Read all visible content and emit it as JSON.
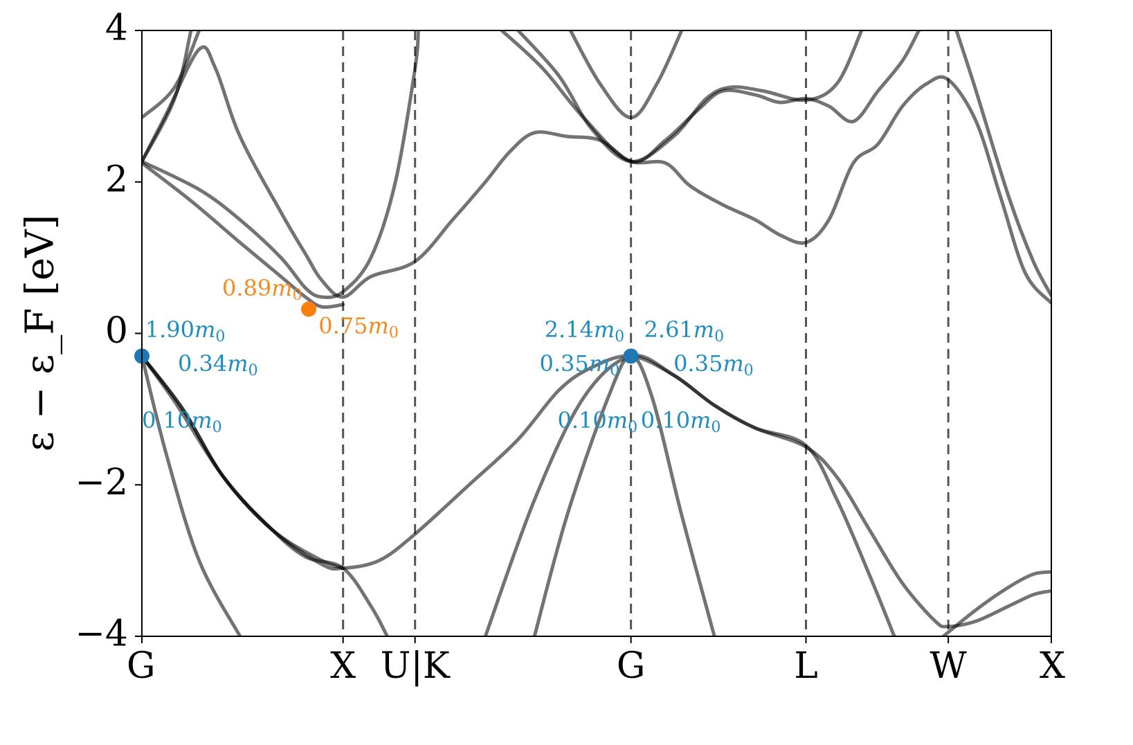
{
  "chart_data": {
    "type": "line",
    "title": "",
    "xlabel": "",
    "ylabel": "ε − ε_F [eV]",
    "ylim": [
      -4,
      4
    ],
    "grid": false,
    "xlim": [
      0,
      5.56
    ],
    "yticks": [
      {
        "value": 4,
        "label": "4"
      },
      {
        "value": 2,
        "label": "2"
      },
      {
        "value": 0,
        "label": "0"
      },
      {
        "value": -2,
        "label": "−2"
      },
      {
        "value": -4,
        "label": "−4"
      }
    ],
    "high_symmetry_points": [
      {
        "x": 0.0,
        "label": "G",
        "line": false
      },
      {
        "x": 1.23,
        "label": "X",
        "line": true
      },
      {
        "x": 1.67,
        "label": "U|K",
        "line": true
      },
      {
        "x": 2.99,
        "label": "G",
        "line": true
      },
      {
        "x": 4.06,
        "label": "L",
        "line": true
      },
      {
        "x": 4.93,
        "label": "W",
        "line": true
      },
      {
        "x": 5.56,
        "label": "X",
        "line": false
      }
    ],
    "series": [
      {
        "values": [
          [
            0.0,
            -0.3
          ],
          [
            0.2,
            -0.9
          ],
          [
            0.5,
            -1.9
          ],
          [
            0.8,
            -2.6
          ],
          [
            1.0,
            -2.95
          ],
          [
            1.23,
            -3.1
          ],
          [
            1.4,
            -3.6
          ],
          [
            1.5,
            -4.0
          ]
        ]
      },
      {
        "values": [
          [
            0.0,
            -0.3
          ],
          [
            0.15,
            -1.6
          ],
          [
            0.35,
            -3.0
          ],
          [
            0.6,
            -4.0
          ]
        ]
      },
      {
        "values": [
          [
            0.0,
            -0.3
          ],
          [
            0.25,
            -1.0
          ],
          [
            0.5,
            -1.9
          ],
          [
            0.8,
            -2.6
          ],
          [
            1.1,
            -3.05
          ],
          [
            1.23,
            -3.1
          ],
          [
            1.45,
            -3.0
          ],
          [
            1.67,
            -2.65
          ],
          [
            2.0,
            -2.0
          ],
          [
            2.3,
            -1.4
          ],
          [
            2.55,
            -0.75
          ],
          [
            2.75,
            -0.45
          ],
          [
            2.99,
            -0.3
          ],
          [
            3.25,
            -0.55
          ],
          [
            3.5,
            -0.95
          ],
          [
            3.75,
            -1.25
          ],
          [
            4.06,
            -1.5
          ],
          [
            4.25,
            -1.9
          ],
          [
            4.45,
            -2.6
          ],
          [
            4.65,
            -3.3
          ],
          [
            4.85,
            -3.8
          ],
          [
            4.93,
            -3.87
          ],
          [
            5.1,
            -3.8
          ],
          [
            5.3,
            -3.6
          ],
          [
            5.45,
            -3.45
          ],
          [
            5.56,
            -3.4
          ]
        ]
      },
      {
        "values": [
          [
            0.0,
            -0.3
          ],
          [
            0.25,
            -1.0
          ],
          [
            0.5,
            -1.9
          ],
          [
            0.8,
            -2.6
          ],
          [
            1.1,
            -3.0
          ],
          [
            1.23,
            -3.1
          ]
        ]
      },
      {
        "values": [
          [
            2.1,
            -4.0
          ],
          [
            2.4,
            -2.2
          ],
          [
            2.7,
            -0.85
          ],
          [
            2.99,
            -0.3
          ],
          [
            3.25,
            -0.55
          ],
          [
            3.5,
            -0.95
          ],
          [
            3.75,
            -1.25
          ],
          [
            4.06,
            -1.48
          ],
          [
            4.25,
            -2.2
          ],
          [
            4.45,
            -3.2
          ],
          [
            4.6,
            -4.0
          ]
        ]
      },
      {
        "values": [
          [
            2.4,
            -4.0
          ],
          [
            2.6,
            -2.4
          ],
          [
            2.85,
            -0.85
          ],
          [
            2.99,
            -0.3
          ],
          [
            3.12,
            -0.85
          ],
          [
            3.3,
            -2.4
          ],
          [
            3.5,
            -4.0
          ]
        ]
      },
      {
        "values": [
          [
            4.9,
            -4.0
          ],
          [
            5.1,
            -3.65
          ],
          [
            5.3,
            -3.35
          ],
          [
            5.45,
            -3.18
          ],
          [
            5.56,
            -3.15
          ]
        ]
      },
      {
        "values": [
          [
            0.0,
            2.25
          ],
          [
            0.3,
            1.75
          ],
          [
            0.6,
            1.2
          ],
          [
            0.85,
            0.75
          ],
          [
            1.0,
            0.48
          ],
          [
            1.1,
            0.35
          ],
          [
            1.23,
            0.38
          ]
        ]
      },
      {
        "values": [
          [
            0.0,
            2.27
          ],
          [
            0.35,
            1.9
          ],
          [
            0.6,
            1.5
          ],
          [
            0.85,
            1.0
          ],
          [
            1.0,
            0.6
          ],
          [
            1.1,
            0.48
          ],
          [
            1.23,
            0.55
          ],
          [
            1.4,
            1.0
          ],
          [
            1.55,
            2.0
          ],
          [
            1.67,
            3.5
          ],
          [
            1.69,
            4.0
          ]
        ]
      },
      {
        "values": [
          [
            0.0,
            2.27
          ],
          [
            0.15,
            2.9
          ],
          [
            0.35,
            3.75
          ],
          [
            0.45,
            3.5
          ],
          [
            0.6,
            2.6
          ],
          [
            0.85,
            1.6
          ],
          [
            1.0,
            1.05
          ],
          [
            1.1,
            0.7
          ],
          [
            1.23,
            0.48
          ],
          [
            1.4,
            0.75
          ],
          [
            1.67,
            0.95
          ],
          [
            1.9,
            1.5
          ],
          [
            2.1,
            2.0
          ],
          [
            2.25,
            2.4
          ],
          [
            2.4,
            2.65
          ],
          [
            2.6,
            2.6
          ],
          [
            2.8,
            2.55
          ],
          [
            2.99,
            2.27
          ],
          [
            3.2,
            2.25
          ],
          [
            3.35,
            1.95
          ],
          [
            3.55,
            1.7
          ],
          [
            3.75,
            1.5
          ],
          [
            3.9,
            1.3
          ],
          [
            4.06,
            1.2
          ],
          [
            4.2,
            1.5
          ],
          [
            4.35,
            2.25
          ],
          [
            4.5,
            2.5
          ],
          [
            4.65,
            3.0
          ],
          [
            4.8,
            3.3
          ],
          [
            4.93,
            3.35
          ],
          [
            5.1,
            2.8
          ],
          [
            5.25,
            1.8
          ],
          [
            5.4,
            0.8
          ],
          [
            5.56,
            0.4
          ]
        ]
      },
      {
        "values": [
          [
            0.0,
            2.85
          ],
          [
            0.2,
            3.25
          ],
          [
            0.35,
            4.0
          ]
        ]
      },
      {
        "values": [
          [
            0.0,
            2.27
          ],
          [
            0.2,
            3.1
          ],
          [
            0.3,
            4.0
          ]
        ]
      },
      {
        "values": [
          [
            2.2,
            4.0
          ],
          [
            2.45,
            3.5
          ],
          [
            2.7,
            2.85
          ],
          [
            2.99,
            2.27
          ],
          [
            3.2,
            2.55
          ],
          [
            3.4,
            2.95
          ],
          [
            3.55,
            3.2
          ],
          [
            3.75,
            3.15
          ],
          [
            3.9,
            3.05
          ],
          [
            4.06,
            3.1
          ],
          [
            4.2,
            3.0
          ],
          [
            4.35,
            2.8
          ],
          [
            4.5,
            3.2
          ],
          [
            4.65,
            3.6
          ],
          [
            4.75,
            4.0
          ]
        ]
      },
      {
        "values": [
          [
            2.3,
            4.0
          ],
          [
            2.55,
            3.4
          ],
          [
            2.75,
            2.7
          ],
          [
            2.99,
            2.27
          ],
          [
            3.25,
            2.6
          ],
          [
            3.45,
            3.1
          ],
          [
            3.6,
            3.25
          ],
          [
            3.8,
            3.2
          ],
          [
            4.06,
            3.08
          ],
          [
            4.25,
            3.3
          ],
          [
            4.4,
            4.0
          ]
        ]
      },
      {
        "values": [
          [
            2.62,
            4.0
          ],
          [
            2.8,
            3.3
          ],
          [
            2.99,
            2.85
          ],
          [
            3.15,
            3.3
          ],
          [
            3.3,
            4.0
          ]
        ]
      },
      {
        "values": [
          [
            4.98,
            4.0
          ],
          [
            5.1,
            3.2
          ],
          [
            5.3,
            1.8
          ],
          [
            5.45,
            0.95
          ],
          [
            5.56,
            0.5
          ]
        ]
      }
    ],
    "markers": [
      {
        "x": 0.0,
        "y": -0.3,
        "color": "#1f77b4"
      },
      {
        "x": 1.02,
        "y": 0.32,
        "color": "#ff7f0e"
      },
      {
        "x": 2.99,
        "y": -0.3,
        "color": "#1f77b4"
      }
    ],
    "colors": {
      "hole": "#1f8dc0",
      "electron": "#f28c1e",
      "marker_hole": "#1f77b4",
      "marker_electron": "#ff7f0e"
    },
    "annotations": [
      {
        "value": "1.90",
        "x": 0.02,
        "y": -0.05,
        "anchor": "start",
        "color": "#1f8dc0"
      },
      {
        "value": "0.34",
        "x": 0.22,
        "y": -0.5,
        "anchor": "start",
        "color": "#1f8dc0"
      },
      {
        "value": "0.10",
        "x": 0.0,
        "y": -1.25,
        "anchor": "start",
        "color": "#1f8dc0"
      },
      {
        "value": "0.89",
        "x": 0.98,
        "y": 0.5,
        "anchor": "end",
        "color": "#f28c1e"
      },
      {
        "value": "0.75",
        "x": 1.08,
        "y": 0.0,
        "anchor": "start",
        "color": "#f28c1e"
      },
      {
        "value": "2.14",
        "x": 2.95,
        "y": -0.05,
        "anchor": "end",
        "color": "#1f8dc0"
      },
      {
        "value": "2.61",
        "x": 3.07,
        "y": -0.05,
        "anchor": "start",
        "color": "#1f8dc0"
      },
      {
        "value": "0.35",
        "x": 2.92,
        "y": -0.5,
        "anchor": "end",
        "color": "#1f8dc0"
      },
      {
        "value": "0.35",
        "x": 3.25,
        "y": -0.5,
        "anchor": "start",
        "color": "#1f8dc0"
      },
      {
        "value": "0.10",
        "x": 3.03,
        "y": -1.25,
        "anchor": "end",
        "color": "#1f8dc0"
      },
      {
        "value": "0.10",
        "x": 3.05,
        "y": -1.25,
        "anchor": "start",
        "color": "#1f8dc0"
      }
    ]
  }
}
